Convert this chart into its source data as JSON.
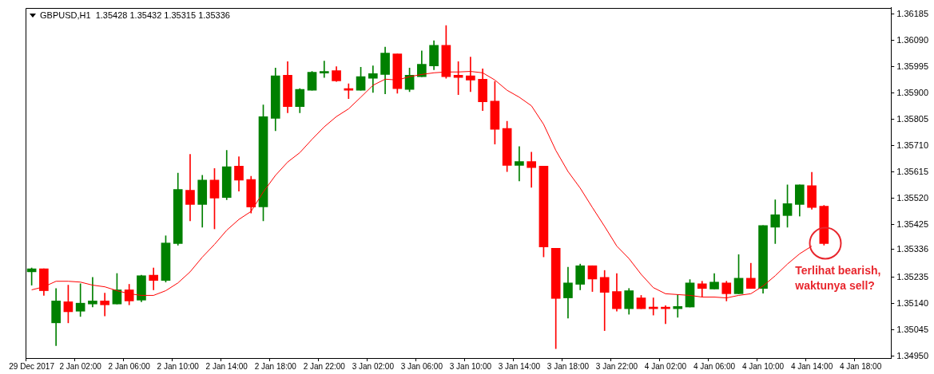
{
  "chart_data": {
    "type": "candlestick",
    "title": "GBPUSD,H1  1.35428 1.35432 1.35315 1.35336",
    "categories": [
      "29 Dec 2017",
      null,
      null,
      null,
      "2 Jan 02:00",
      null,
      null,
      null,
      "2 Jan 06:00",
      null,
      null,
      null,
      "2 Jan 10:00",
      null,
      null,
      null,
      "2 Jan 14:00",
      null,
      null,
      null,
      "2 Jan 18:00",
      null,
      null,
      null,
      "2 Jan 22:00",
      null,
      null,
      null,
      "3 Jan 02:00",
      null,
      null,
      null,
      "3 Jan 06:00",
      null,
      null,
      null,
      "3 Jan 10:00",
      null,
      null,
      null,
      "3 Jan 14:00",
      null,
      null,
      null,
      "3 Jan 18:00",
      null,
      null,
      null,
      "3 Jan 22:00",
      null,
      null,
      null,
      "4 Jan 02:00",
      null,
      null,
      null,
      "4 Jan 06:00",
      null,
      null,
      null,
      "4 Jan 10:00",
      null,
      null,
      null,
      "4 Jan 14:00",
      null,
      null,
      null,
      "4 Jan 18:00",
      null,
      null
    ],
    "ohlc": [
      [
        1.35255,
        1.35269,
        1.35207,
        1.35266
      ],
      [
        1.35266,
        1.35266,
        1.3517,
        1.35187
      ],
      [
        1.35071,
        1.35195,
        1.34989,
        1.3515
      ],
      [
        1.35147,
        1.35207,
        1.35071,
        1.35111
      ],
      [
        1.35113,
        1.35212,
        1.35094,
        1.35142
      ],
      [
        1.35139,
        1.35235,
        1.35128,
        1.3515
      ],
      [
        1.3515,
        1.35178,
        1.35096,
        1.35136
      ],
      [
        1.35139,
        1.35249,
        1.35139,
        1.3519
      ],
      [
        1.3519,
        1.3521,
        1.35136,
        1.3515
      ],
      [
        1.35153,
        1.35243,
        1.35147,
        1.35241
      ],
      [
        1.35243,
        1.35269,
        1.3519,
        1.35224
      ],
      [
        1.35224,
        1.35385,
        1.35218,
        1.35359
      ],
      [
        1.35357,
        1.35611,
        1.35351,
        1.35552
      ],
      [
        1.35549,
        1.35679,
        1.35439,
        1.35498
      ],
      [
        1.35498,
        1.35603,
        1.35416,
        1.35586
      ],
      [
        1.35586,
        1.35628,
        1.3541,
        1.35521
      ],
      [
        1.35523,
        1.35693,
        1.35515,
        1.35634
      ],
      [
        1.35636,
        1.3567,
        1.35546,
        1.35586
      ],
      [
        1.35588,
        1.356,
        1.35467,
        1.35489
      ],
      [
        1.35489,
        1.35857,
        1.35439,
        1.35815
      ],
      [
        1.35809,
        1.3599,
        1.35764,
        1.35962
      ],
      [
        1.35964,
        1.36013,
        1.35829,
        1.35851
      ],
      [
        1.35851,
        1.35916,
        1.35829,
        1.35913
      ],
      [
        1.3591,
        1.35978,
        1.3591,
        1.35975
      ],
      [
        1.35972,
        1.36015,
        1.35956,
        1.35978
      ],
      [
        1.35981,
        1.35995,
        1.35942,
        1.35944
      ],
      [
        1.35916,
        1.35933,
        1.3588,
        1.3591
      ],
      [
        1.3591,
        1.35993,
        1.3591,
        1.35959
      ],
      [
        1.35953,
        1.35998,
        1.35902,
        1.3597
      ],
      [
        1.35967,
        1.36066,
        1.35897,
        1.36044
      ],
      [
        1.36041,
        1.36041,
        1.35899,
        1.35916
      ],
      [
        1.35913,
        1.3599,
        1.35905,
        1.35964
      ],
      [
        1.35959,
        1.36052,
        1.35959,
        1.36004
      ],
      [
        1.35998,
        1.36089,
        1.35984,
        1.36072
      ],
      [
        1.36072,
        1.36143,
        1.35953,
        1.35959
      ],
      [
        1.35964,
        1.36013,
        1.35894,
        1.35956
      ],
      [
        1.35962,
        1.3603,
        1.35905,
        1.35947
      ],
      [
        1.3595,
        1.35987,
        1.35837,
        1.35868
      ],
      [
        1.35871,
        1.35942,
        1.35716,
        1.35769
      ],
      [
        1.35772,
        1.35798,
        1.35617,
        1.35639
      ],
      [
        1.35639,
        1.35707,
        1.35583,
        1.35653
      ],
      [
        1.35653,
        1.35687,
        1.3556,
        1.35631
      ],
      [
        1.35636,
        1.35636,
        1.35309,
        1.35345
      ],
      [
        1.3534,
        1.3534,
        1.34978,
        1.35159
      ],
      [
        1.35161,
        1.35272,
        1.35088,
        1.35215
      ],
      [
        1.3521,
        1.35283,
        1.3519,
        1.35277
      ],
      [
        1.35277,
        1.35277,
        1.35184,
        1.35229
      ],
      [
        1.35235,
        1.3526,
        1.35043,
        1.35181
      ],
      [
        1.35184,
        1.35249,
        1.35113,
        1.35122
      ],
      [
        1.35122,
        1.35195,
        1.35102,
        1.35187
      ],
      [
        1.35161,
        1.3517,
        1.35122,
        1.35122
      ],
      [
        1.35128,
        1.35161,
        1.35099,
        1.35122
      ],
      [
        1.35125,
        1.35133,
        1.35068,
        1.35122
      ],
      [
        1.35122,
        1.35173,
        1.35091,
        1.3513
      ],
      [
        1.35128,
        1.35227,
        1.35128,
        1.35215
      ],
      [
        1.35212,
        1.35221,
        1.35164,
        1.35195
      ],
      [
        1.35193,
        1.35249,
        1.35193,
        1.35218
      ],
      [
        1.35215,
        1.35221,
        1.3515,
        1.35176
      ],
      [
        1.35176,
        1.35317,
        1.35176,
        1.35232
      ],
      [
        1.35232,
        1.35286,
        1.35195,
        1.35195
      ],
      [
        1.35195,
        1.35422,
        1.35178,
        1.35422
      ],
      [
        1.35416,
        1.35515,
        1.35357,
        1.35461
      ],
      [
        1.35458,
        1.35569,
        1.35416,
        1.35501
      ],
      [
        1.35498,
        1.35569,
        1.35456,
        1.35569
      ],
      [
        1.35566,
        1.35614,
        1.35481,
        1.35487
      ],
      [
        1.35492,
        1.35495,
        1.35351,
        1.35357
      ],
      null,
      null,
      null,
      null,
      null
    ],
    "colors": [
      "#008000",
      "#ff0000",
      "#008000",
      "#ff0000",
      "#008000",
      "#008000",
      "#ff0000",
      "#008000",
      "#ff0000",
      "#008000",
      "#ff0000",
      "#008000",
      "#008000",
      "#ff0000",
      "#008000",
      "#ff0000",
      "#008000",
      "#ff0000",
      "#ff0000",
      "#008000",
      "#008000",
      "#ff0000",
      "#008000",
      "#008000",
      "#008000",
      "#ff0000",
      "#ff0000",
      "#008000",
      "#008000",
      "#008000",
      "#ff0000",
      "#008000",
      "#008000",
      "#008000",
      "#ff0000",
      "#ff0000",
      "#ff0000",
      "#ff0000",
      "#ff0000",
      "#ff0000",
      "#008000",
      "#ff0000",
      "#ff0000",
      "#ff0000",
      "#008000",
      "#008000",
      "#ff0000",
      "#ff0000",
      "#ff0000",
      "#008000",
      "#ff0000",
      "#ff0000",
      "#ff0000",
      "#008000",
      "#008000",
      "#ff0000",
      "#008000",
      "#ff0000",
      "#008000",
      "#ff0000",
      "#008000",
      "#008000",
      "#008000",
      "#008000",
      "#ff0000",
      "#ff0000",
      null,
      null,
      null,
      null,
      null
    ],
    "series": [
      {
        "type": "line",
        "color": "#ff0000",
        "values": [
          1.3519,
          1.35201,
          1.35221,
          1.35221,
          1.35218,
          1.35207,
          1.35201,
          1.35187,
          1.35176,
          1.3517,
          1.3517,
          1.35187,
          1.35215,
          1.35255,
          1.35308,
          1.35354,
          1.35405,
          1.35444,
          1.35473,
          1.35543,
          1.35603,
          1.35651,
          1.35685,
          1.35733,
          1.35778,
          1.35815,
          1.35843,
          1.35885,
          1.35928,
          1.3595,
          1.35947,
          1.35959,
          1.35967,
          1.35973,
          1.35976,
          1.35976,
          1.35978,
          1.35973,
          1.35947,
          1.3591,
          1.35885,
          1.35854,
          1.35787,
          1.35693,
          1.35617,
          1.35557,
          1.35487,
          1.35419,
          1.35348,
          1.35303,
          1.35246,
          1.35198,
          1.35176,
          1.35173,
          1.3517,
          1.35164,
          1.35164,
          1.35161,
          1.3517,
          1.35176,
          1.35204,
          1.35241,
          1.35283,
          1.3532,
          1.35348,
          null,
          null,
          null,
          null,
          null,
          null
        ]
      }
    ],
    "ylim": [
      1.34944,
      1.36208
    ],
    "yticks": [
      1.36185,
      {
        "value": 1.3609,
        "label": "1.36090"
      },
      1.35995,
      {
        "value": 1.359,
        "label": "1.35900"
      },
      1.35805,
      {
        "value": 1.3571,
        "label": "1.35710"
      },
      1.35615,
      {
        "value": 1.3552,
        "label": "1.35520"
      },
      1.35425,
      1.35336,
      1.35235,
      {
        "value": 1.3514,
        "label": "1.35140"
      },
      1.35045,
      {
        "value": 1.3495,
        "label": "1.34950"
      }
    ],
    "annotations": [
      "Terlihat bearish, waktunya sell?"
    ],
    "grid": false,
    "legend": false
  }
}
